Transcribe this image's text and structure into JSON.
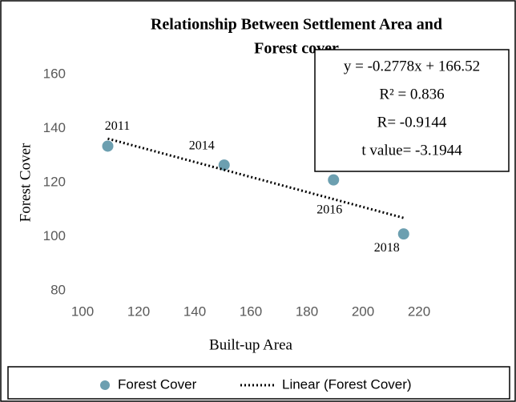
{
  "chart_data": {
    "type": "scatter",
    "title": [
      "Relationship Between Settlement Area and",
      "Forest cover"
    ],
    "x_label": "Built-up Area",
    "y_label": "Forest Cover",
    "xlim": [
      100,
      220
    ],
    "xticks": [
      100,
      120,
      140,
      160,
      180,
      200,
      220
    ],
    "ylim": [
      80,
      160
    ],
    "yticks": [
      80,
      100,
      120,
      140,
      160
    ],
    "grid": false,
    "legend": "bottom",
    "series": [
      {
        "name": "Forest Cover",
        "type": "scatter",
        "color": "#6c9fb0",
        "x": [
          109,
          150.5,
          189.5,
          214.5
        ],
        "values": [
          133.5,
          126.5,
          121,
          101
        ],
        "point_labels": [
          "2011",
          "2014",
          "2016",
          "2018"
        ]
      },
      {
        "name": "Linear (Forest Cover)",
        "type": "line",
        "color": "#000000",
        "x": [
          109,
          214.5
        ],
        "values": [
          136.24,
          106.93
        ]
      }
    ],
    "annotations": [
      "y = -0.2778x + 166.52",
      "R² = 0.836",
      "R= -0.9144",
      "t value= -3.1944"
    ]
  }
}
